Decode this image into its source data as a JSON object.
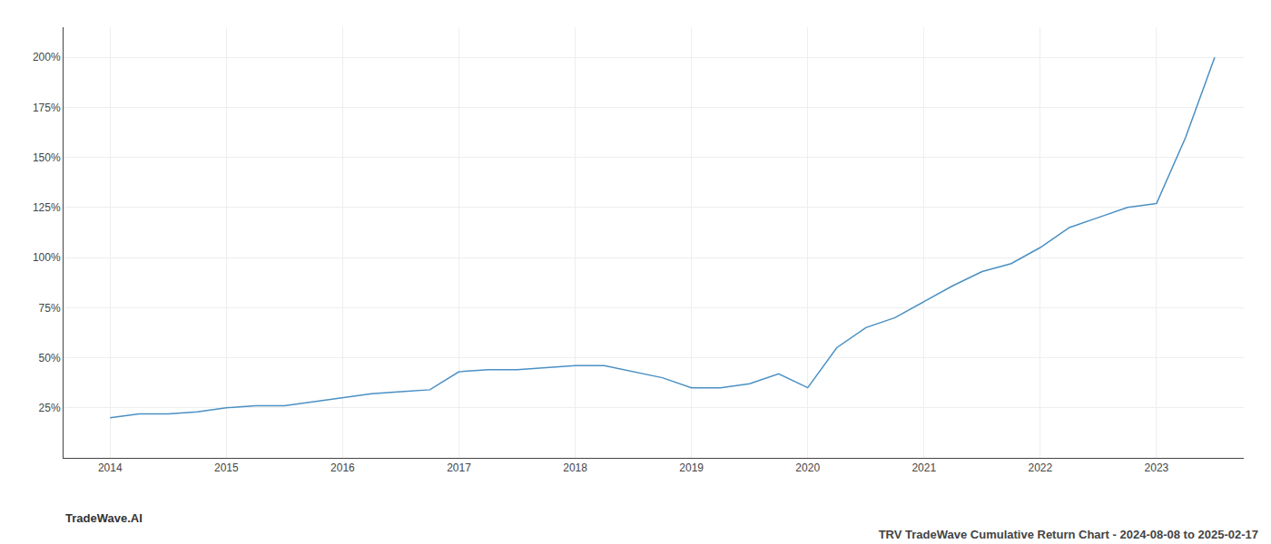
{
  "chart_data": {
    "type": "line",
    "title": "TRV TradeWave Cumulative Return Chart - 2024-08-08 to 2025-02-17",
    "annotations": [
      "TradeWave.AI"
    ],
    "x": [
      2014.0,
      2014.25,
      2014.5,
      2014.75,
      2015.0,
      2015.25,
      2015.5,
      2015.75,
      2016.0,
      2016.25,
      2016.5,
      2016.75,
      2017.0,
      2017.25,
      2017.5,
      2017.75,
      2018.0,
      2018.25,
      2018.5,
      2018.75,
      2019.0,
      2019.25,
      2019.5,
      2019.75,
      2020.0,
      2020.25,
      2020.5,
      2020.75,
      2021.0,
      2021.25,
      2021.5,
      2021.75,
      2022.0,
      2022.25,
      2022.5,
      2022.75,
      2023.0,
      2023.25,
      2023.5
    ],
    "values": [
      20,
      22,
      22,
      23,
      25,
      26,
      26,
      28,
      30,
      32,
      33,
      34,
      43,
      44,
      44,
      45,
      46,
      46,
      43,
      40,
      35,
      35,
      37,
      42,
      35,
      55,
      65,
      70,
      78,
      86,
      93,
      97,
      105,
      115,
      120,
      125,
      127,
      160,
      200
    ],
    "color": "#4a90c4",
    "xlim": [
      2013.6,
      2023.75
    ],
    "xticks": [
      2014,
      2015,
      2016,
      2017,
      2018,
      2019,
      2020,
      2021,
      2022,
      2023
    ],
    "ylim": [
      0,
      215
    ],
    "yticks": [
      {
        "value": 25,
        "label": "25%"
      },
      {
        "value": 50,
        "label": "50%"
      },
      {
        "value": 75,
        "label": "75%"
      },
      {
        "value": 100,
        "label": "100%"
      },
      {
        "value": 125,
        "label": "125%"
      },
      {
        "value": 150,
        "label": "150%"
      },
      {
        "value": 175,
        "label": "175%"
      },
      {
        "value": 200,
        "label": "200%"
      }
    ],
    "grid": true
  }
}
